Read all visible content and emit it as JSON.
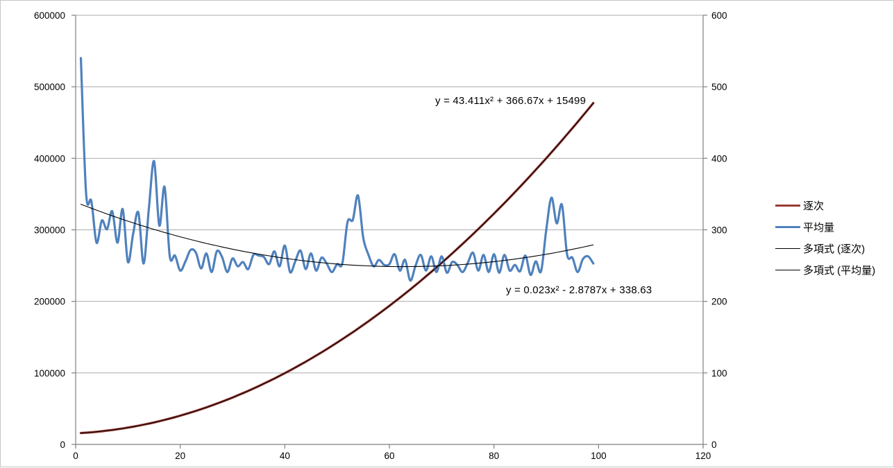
{
  "chart_data": {
    "type": "line",
    "title": "",
    "xlabel": "",
    "ylabel_left": "",
    "ylabel_right": "",
    "grid": "horizontal",
    "legend_position": "right",
    "axes": {
      "x": {
        "min": 0,
        "max": 120,
        "ticks": [
          0,
          20,
          40,
          60,
          80,
          100,
          120
        ],
        "tick_labels": [
          "0",
          "20",
          "40",
          "60",
          "80",
          "100",
          "120"
        ]
      },
      "y_left": {
        "min": 0,
        "max": 600000,
        "ticks": [
          0,
          100000,
          200000,
          300000,
          400000,
          500000,
          600000
        ],
        "tick_labels": [
          "0",
          "100000",
          "200000",
          "300000",
          "400000",
          "500000",
          "600000"
        ]
      },
      "y_right": {
        "min": 0,
        "max": 600,
        "ticks": [
          0,
          100,
          200,
          300,
          400,
          500,
          600
        ],
        "tick_labels": [
          "0",
          "100",
          "200",
          "300",
          "400",
          "500",
          "600"
        ]
      }
    },
    "series": [
      {
        "name": "逐次",
        "axis": "left",
        "color": "#9a3b36",
        "width": 3.4,
        "kind": "quadratic",
        "coeffs": [
          43.411,
          366.67,
          15499
        ],
        "x_start": 1,
        "x_end": 99
      },
      {
        "name": "平均量",
        "axis": "right",
        "color": "#4f81bd",
        "width": 3.2,
        "kind": "points",
        "x_start": 1,
        "values": [
          540,
          350,
          340,
          282,
          313,
          301,
          326,
          282,
          329,
          255,
          295,
          324,
          253,
          330,
          396,
          306,
          360,
          263,
          264,
          243,
          256,
          272,
          268,
          246,
          267,
          241,
          270,
          262,
          241,
          260,
          249,
          255,
          245,
          265,
          264,
          262,
          252,
          270,
          249,
          278,
          241,
          256,
          271,
          245,
          267,
          243,
          261,
          253,
          241,
          252,
          253,
          311,
          314,
          348,
          289,
          265,
          249,
          258,
          251,
          252,
          266,
          243,
          258,
          229,
          250,
          265,
          243,
          263,
          241,
          263,
          240,
          255,
          251,
          241,
          254,
          268,
          243,
          265,
          241,
          266,
          240,
          265,
          243,
          251,
          242,
          264,
          237,
          256,
          242,
          300,
          345,
          309,
          335,
          265,
          261,
          241,
          259,
          263,
          253
        ]
      }
    ],
    "trendlines": [
      {
        "name": "多項式 (逐次)",
        "axis": "left",
        "color": "#000000",
        "width": 1.1,
        "coeffs": [
          43.411,
          366.67,
          15499
        ],
        "equation": "y = 43.411x² + 366.67x + 15499",
        "x_start": 1,
        "x_end": 99
      },
      {
        "name": "多項式 (平均量)",
        "axis": "right",
        "color": "#000000",
        "width": 1.1,
        "coeffs": [
          0.023,
          -2.8787,
          338.63
        ],
        "equation": "y = 0.023x² - 2.8787x + 338.63",
        "x_start": 1,
        "x_end": 99
      }
    ],
    "legend": [
      {
        "label": "逐次",
        "swatch": "thick",
        "color": "#9a3b36"
      },
      {
        "label": "平均量",
        "swatch": "thick",
        "color": "#4f81bd"
      },
      {
        "label": "多項式 (逐次)",
        "swatch": "thin",
        "color": "#000000"
      },
      {
        "label": "多項式 (平均量)",
        "swatch": "thin",
        "color": "#000000"
      }
    ],
    "colors": {
      "gridline": "#ababab",
      "axis": "#7f7f7f",
      "text": "#000000",
      "background": "#ffffff"
    }
  }
}
